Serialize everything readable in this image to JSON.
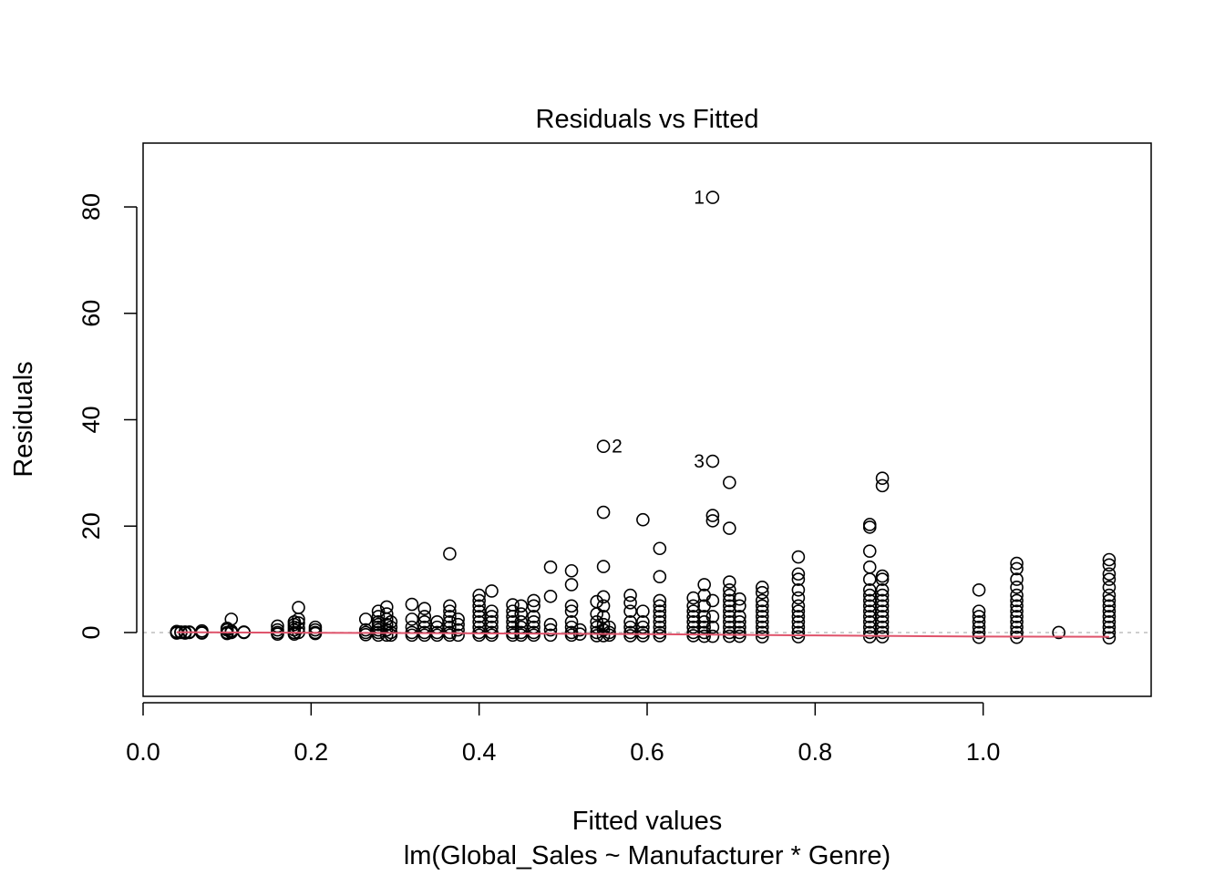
{
  "chart_data": {
    "type": "scatter",
    "title": "Residuals vs Fitted",
    "xlabel": "Fitted values",
    "subtitle": "lm(Global_Sales ~ Manufacturer * Genre)",
    "ylabel": "Residuals",
    "xlim": [
      0.0,
      1.2
    ],
    "ylim": [
      -12,
      92
    ],
    "x_ticks": [
      0.0,
      0.2,
      0.4,
      0.6,
      0.8,
      1.0
    ],
    "x_tick_labels": [
      "0.0",
      "0.2",
      "0.4",
      "0.6",
      "0.8",
      "1.0"
    ],
    "y_ticks": [
      0,
      20,
      40,
      60,
      80
    ],
    "y_tick_labels": [
      "0",
      "20",
      "40",
      "60",
      "80"
    ],
    "grid": false,
    "zero_reference_line": true,
    "colors": {
      "points": "#000000",
      "smooth_line": "#DF536B",
      "reference_line": "#BEBEBE"
    },
    "point_columns": [
      {
        "x": 0.04,
        "y": [
          0,
          0.1,
          -0.1,
          0.2
        ]
      },
      {
        "x": 0.045,
        "y": [
          0,
          0.1
        ]
      },
      {
        "x": 0.05,
        "y": [
          0,
          0.1,
          -0.1
        ]
      },
      {
        "x": 0.055,
        "y": [
          0,
          0.1
        ]
      },
      {
        "x": 0.07,
        "y": [
          0,
          0.3,
          -0.1
        ]
      },
      {
        "x": 0.1,
        "y": [
          0,
          0.5,
          0.8,
          -0.2
        ]
      },
      {
        "x": 0.105,
        "y": [
          2.5,
          0.3,
          0
        ]
      },
      {
        "x": 0.12,
        "y": [
          0,
          0.1
        ]
      },
      {
        "x": 0.16,
        "y": [
          0,
          0.5,
          1.2,
          -0.3
        ]
      },
      {
        "x": 0.18,
        "y": [
          0,
          0.5,
          1,
          1.5,
          2,
          -0.3
        ]
      },
      {
        "x": 0.185,
        "y": [
          4.7,
          2.5,
          1.8,
          0.8,
          0
        ]
      },
      {
        "x": 0.205,
        "y": [
          0,
          0.5,
          1,
          -0.2
        ]
      },
      {
        "x": 0.265,
        "y": [
          2.5,
          0.5,
          0,
          -0.4
        ]
      },
      {
        "x": 0.28,
        "y": [
          0,
          0.5,
          1,
          1.5,
          2,
          3,
          4,
          -0.5
        ]
      },
      {
        "x": 0.29,
        "y": [
          4.8,
          3.5,
          2.5,
          1.5,
          0.5,
          -0.5
        ]
      },
      {
        "x": 0.295,
        "y": [
          0,
          1,
          2,
          -0.5
        ]
      },
      {
        "x": 0.32,
        "y": [
          5.3,
          2.5,
          1,
          0,
          -0.5
        ]
      },
      {
        "x": 0.335,
        "y": [
          4.5,
          3,
          2,
          1,
          0,
          -0.5
        ]
      },
      {
        "x": 0.35,
        "y": [
          2,
          1,
          0,
          -0.5
        ]
      },
      {
        "x": 0.365,
        "y": [
          14.8,
          5,
          4,
          3,
          2,
          1,
          0,
          -0.5
        ]
      },
      {
        "x": 0.375,
        "y": [
          2.5,
          1.5,
          0.5,
          -0.5
        ]
      },
      {
        "x": 0.4,
        "y": [
          7,
          6,
          5,
          4,
          3,
          2,
          1,
          0,
          -0.5
        ]
      },
      {
        "x": 0.415,
        "y": [
          7.8,
          4,
          3,
          2,
          1,
          0,
          -0.5
        ]
      },
      {
        "x": 0.44,
        "y": [
          5.2,
          4,
          3,
          2,
          1,
          0,
          -0.5
        ]
      },
      {
        "x": 0.45,
        "y": [
          5,
          3.5,
          2,
          1,
          0,
          -0.5
        ]
      },
      {
        "x": 0.465,
        "y": [
          6,
          5,
          3,
          2,
          1,
          0,
          -0.5
        ]
      },
      {
        "x": 0.485,
        "y": [
          12.3,
          6.8,
          1.5,
          0.5,
          -0.5
        ]
      },
      {
        "x": 0.51,
        "y": [
          11.6,
          9,
          5,
          4,
          2,
          1,
          0,
          -0.5
        ]
      },
      {
        "x": 0.52,
        "y": [
          0.5,
          -0.3
        ]
      },
      {
        "x": 0.54,
        "y": [
          5.8,
          3.5,
          2,
          1,
          0,
          -0.6
        ]
      },
      {
        "x": 0.548,
        "y": [
          35.0,
          22.6,
          12.4,
          6.7,
          5,
          3,
          1.5,
          0.5,
          -0.6
        ]
      },
      {
        "x": 0.555,
        "y": [
          1,
          0,
          -0.5
        ]
      },
      {
        "x": 0.58,
        "y": [
          7,
          5.6,
          4,
          2,
          1,
          0,
          -0.6
        ]
      },
      {
        "x": 0.595,
        "y": [
          21.2,
          4,
          2,
          1,
          0,
          -0.6
        ]
      },
      {
        "x": 0.615,
        "y": [
          15.8,
          10.5,
          6,
          5,
          4,
          3,
          2,
          1,
          0,
          -0.6
        ]
      },
      {
        "x": 0.655,
        "y": [
          6.5,
          5,
          4,
          3,
          2,
          1,
          0,
          -0.6
        ]
      },
      {
        "x": 0.668,
        "y": [
          9,
          7,
          5,
          3,
          2,
          1,
          0,
          -0.7
        ]
      },
      {
        "x": 0.678,
        "y": [
          81.8,
          32.2,
          22,
          21,
          6,
          3,
          1,
          -0.7
        ]
      },
      {
        "x": 0.698,
        "y": [
          28.2,
          19.6,
          9.5,
          8,
          7,
          6,
          5,
          4,
          3,
          2,
          1,
          0,
          -0.7
        ]
      },
      {
        "x": 0.71,
        "y": [
          6.3,
          5,
          3,
          2,
          1,
          0,
          -0.7
        ]
      },
      {
        "x": 0.737,
        "y": [
          8.5,
          7.5,
          6,
          5,
          4,
          3,
          2,
          1,
          0,
          -0.8
        ]
      },
      {
        "x": 0.78,
        "y": [
          14.2,
          11,
          10,
          8,
          6.5,
          5,
          4,
          3,
          2,
          1,
          0,
          -0.8
        ]
      },
      {
        "x": 0.865,
        "y": [
          20.3,
          19.8,
          15.3,
          12.3,
          10,
          8,
          7,
          6,
          5,
          4,
          3,
          2,
          1,
          0,
          -0.8
        ]
      },
      {
        "x": 0.88,
        "y": [
          29,
          27.6,
          10.6,
          10,
          8,
          7,
          6,
          5,
          4,
          3,
          2,
          1,
          0,
          -0.8
        ]
      },
      {
        "x": 0.995,
        "y": [
          8,
          4,
          3,
          2,
          1,
          0,
          -0.9
        ]
      },
      {
        "x": 1.04,
        "y": [
          13,
          12,
          10,
          8.5,
          7,
          6,
          5,
          4,
          3,
          2,
          1,
          0,
          -0.9
        ]
      },
      {
        "x": 1.09,
        "y": [
          0
        ]
      },
      {
        "x": 1.15,
        "y": [
          13.7,
          12.7,
          11,
          10,
          8.5,
          7,
          6,
          5,
          4,
          3,
          2,
          1,
          0,
          -1
        ]
      }
    ],
    "labeled_points": [
      {
        "label": "1",
        "x": 0.678,
        "y": 81.8,
        "label_side": "left"
      },
      {
        "label": "2",
        "x": 0.548,
        "y": 35.0,
        "label_side": "right"
      },
      {
        "label": "3",
        "x": 0.678,
        "y": 32.2,
        "label_side": "left"
      }
    ],
    "smooth_line": [
      {
        "x": 0.04,
        "y": 0.05
      },
      {
        "x": 0.2,
        "y": -0.05
      },
      {
        "x": 0.4,
        "y": -0.15
      },
      {
        "x": 0.6,
        "y": -0.3
      },
      {
        "x": 0.8,
        "y": -0.55
      },
      {
        "x": 1.0,
        "y": -0.75
      },
      {
        "x": 1.15,
        "y": -0.8
      }
    ]
  }
}
